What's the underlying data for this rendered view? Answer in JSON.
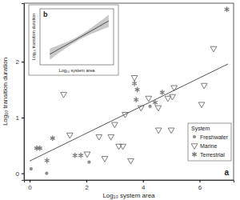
{
  "chart_data": [
    {
      "type": "scatter",
      "annotation": "a",
      "xlabel": "Log₁₀ system area",
      "ylabel": "Log₁₀ transition duration",
      "xlim": [
        -0.2,
        7.2
      ],
      "ylim": [
        -0.12,
        3.05
      ],
      "xticks": [
        0,
        2,
        4,
        6
      ],
      "yticks": [
        0,
        1,
        2
      ],
      "legend": "lower right",
      "legend_title": "System",
      "series": [
        {
          "name": "Freshwater",
          "color": "#8c8c8c",
          "marker": "circle",
          "x": [
            0.05,
            0.6,
            2.1,
            4.25
          ],
          "values": [
            0.08,
            0.0,
            0.2,
            1.2
          ]
        },
        {
          "name": "Marine",
          "color": "#6e6e6e",
          "marker": "triangle-down",
          "x": [
            1.2,
            1.42,
            2.03,
            2.45,
            2.65,
            2.87,
            3.0,
            3.15,
            3.29,
            3.37,
            3.57,
            3.7,
            3.93,
            4.2,
            4.54,
            4.55,
            4.88,
            5.0,
            5.04,
            5.1,
            6.07,
            6.16,
            6.49
          ],
          "values": [
            1.42,
            0.69,
            0.35,
            0.66,
            0.27,
            0.66,
            0.88,
            0.49,
            0.49,
            1.06,
            0.23,
            1.72,
            1.18,
            1.35,
            1.18,
            0.78,
            1.35,
            0.78,
            1.38,
            1.54,
            1.24,
            1.58,
            2.24
          ]
        },
        {
          "name": "Terrestrial",
          "color": "#7a7a7a",
          "marker": "asterisk",
          "x": [
            0.25,
            0.36,
            0.61,
            0.81,
            1.6,
            1.81,
            3.7,
            3.76,
            3.8,
            4.43,
            4.68,
            6.96
          ],
          "values": [
            0.45,
            0.45,
            0.23,
            0.63,
            0.32,
            0.32,
            1.61,
            1.32,
            1.5,
            1.27,
            1.45,
            2.94
          ]
        },
        {
          "type": "line",
          "color": "#555555",
          "x": [
            0,
            7
          ],
          "values": [
            0.22,
            1.96
          ]
        }
      ]
    },
    {
      "type": "line",
      "annotation": "b",
      "xlabel": "Log₁₀ system area",
      "ylabel": "Log₁₀ transition duration",
      "xlim": [
        0,
        7.5
      ],
      "ylim": [
        0,
        2.5
      ],
      "tick_labels": false,
      "series": [
        {
          "color": "#444444",
          "x": [
            1,
            2,
            3,
            4,
            5,
            6,
            7
          ],
          "values": [
            0.47,
            0.72,
            0.96,
            1.21,
            1.46,
            1.71,
            1.96
          ],
          "lower": [
            0.22,
            0.55,
            0.85,
            1.12,
            1.34,
            1.52,
            1.69
          ],
          "upper": [
            0.72,
            0.89,
            1.07,
            1.3,
            1.58,
            1.9,
            2.23
          ]
        }
      ]
    }
  ]
}
